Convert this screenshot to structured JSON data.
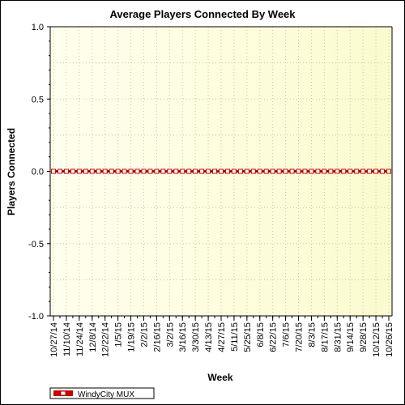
{
  "chart_data": {
    "type": "line",
    "title": "Average Players Connected By Week",
    "xlabel": "Week",
    "ylabel": "Players Connected",
    "ylim": [
      -1.0,
      1.0
    ],
    "y_ticks": [
      "1.0",
      "0.5",
      "0.0",
      "-0.5",
      "-1.0"
    ],
    "grid": true,
    "legend_position": "bottom-left",
    "x_tick_labels": [
      "10/27/14",
      "11/10/14",
      "11/24/14",
      "12/8/14",
      "12/22/14",
      "1/5/15",
      "1/19/15",
      "2/2/15",
      "2/16/15",
      "3/2/15",
      "3/16/15",
      "3/30/15",
      "4/13/15",
      "4/27/15",
      "5/11/15",
      "5/25/15",
      "6/8/15",
      "6/22/15",
      "7/6/15",
      "7/20/15",
      "8/3/15",
      "8/17/15",
      "8/31/15",
      "9/14/15",
      "9/28/15",
      "10/12/15",
      "10/26/15"
    ],
    "x": [
      "10/27/14",
      "11/3/14",
      "11/10/14",
      "11/17/14",
      "11/24/14",
      "12/1/14",
      "12/8/14",
      "12/15/14",
      "12/22/14",
      "12/29/14",
      "1/5/15",
      "1/12/15",
      "1/19/15",
      "1/26/15",
      "2/2/15",
      "2/9/15",
      "2/16/15",
      "2/23/15",
      "3/2/15",
      "3/9/15",
      "3/16/15",
      "3/23/15",
      "3/30/15",
      "4/6/15",
      "4/13/15",
      "4/20/15",
      "4/27/15",
      "5/4/15",
      "5/11/15",
      "5/18/15",
      "5/25/15",
      "6/1/15",
      "6/8/15",
      "6/15/15",
      "6/22/15",
      "6/29/15",
      "7/6/15",
      "7/13/15",
      "7/20/15",
      "7/27/15",
      "8/3/15",
      "8/10/15",
      "8/17/15",
      "8/24/15",
      "8/31/15",
      "9/7/15",
      "9/14/15",
      "9/21/15",
      "9/28/15",
      "10/5/15",
      "10/12/15",
      "10/19/15",
      "10/26/15"
    ],
    "series": [
      {
        "name": "WindyCity MUX",
        "color": "#cc0000",
        "values": [
          0,
          0,
          0,
          0,
          0,
          0,
          0,
          0,
          0,
          0,
          0,
          0,
          0,
          0,
          0,
          0,
          0,
          0,
          0,
          0,
          0,
          0,
          0,
          0,
          0,
          0,
          0,
          0,
          0,
          0,
          0,
          0,
          0,
          0,
          0,
          0,
          0,
          0,
          0,
          0,
          0,
          0,
          0,
          0,
          0,
          0,
          0,
          0,
          0,
          0,
          0,
          0,
          0
        ]
      }
    ]
  },
  "colors": {
    "plot_bg_left": "#ffffcc",
    "plot_bg_right": "#fafad2",
    "grid": "#c8c8a0",
    "line": "#cc0000"
  }
}
